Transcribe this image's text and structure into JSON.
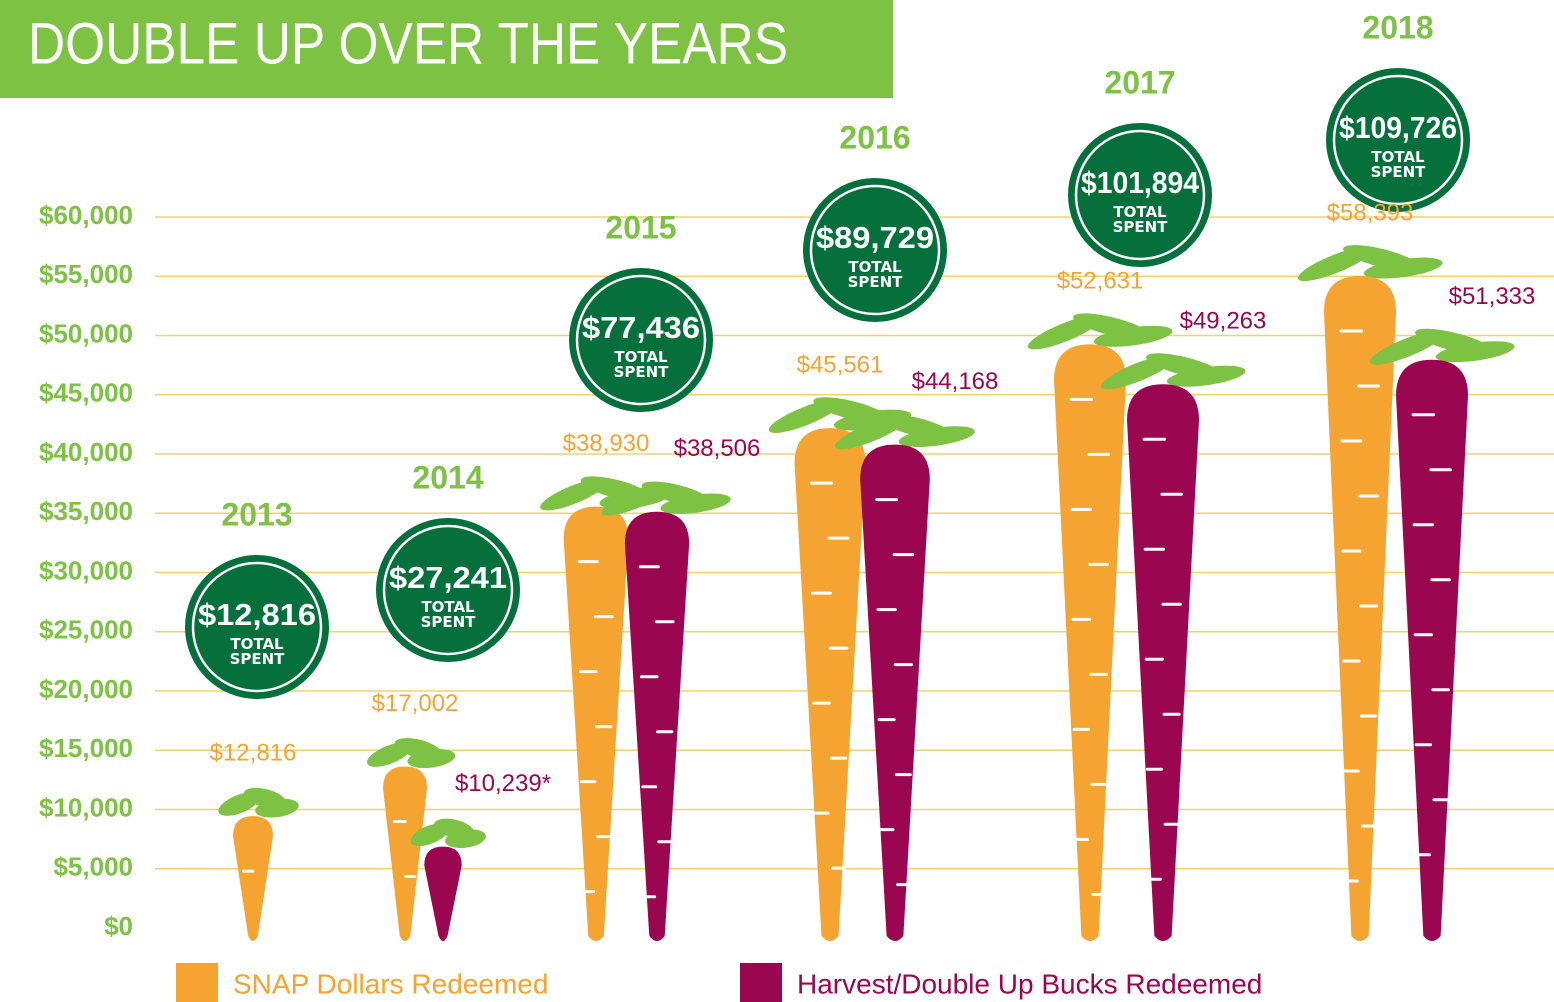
{
  "chart_data": {
    "type": "carrot-bar",
    "title": "DOUBLE UP OVER THE YEARS",
    "categories": [
      "2013",
      "2014",
      "2015",
      "2016",
      "2017",
      "2018"
    ],
    "series": [
      {
        "name": "SNAP Dollars Redeemed",
        "color": "#f5a431",
        "values": [
          12816,
          17002,
          38930,
          45561,
          52631,
          58393
        ],
        "value_labels": [
          "$12,816",
          "$17,002",
          "$38,930",
          "$45,561",
          "$52,631",
          "$58,393"
        ]
      },
      {
        "name": "Harvest/Double Up Bucks Redeemed",
        "color": "#9b0650",
        "values": [
          null,
          10239,
          38506,
          44168,
          49263,
          51333
        ],
        "value_labels": [
          null,
          "$10,239*",
          "$38,506",
          "$44,168",
          "$49,263",
          "$51,333"
        ]
      }
    ],
    "totals": {
      "caption": "TOTAL SPENT",
      "color": "#05703c",
      "values": [
        12816,
        27241,
        77436,
        89729,
        101894,
        109726
      ],
      "value_labels": [
        "$12,816",
        "$27,241",
        "$77,436",
        "$89,729",
        "$101,894",
        "$109,726"
      ]
    },
    "ylim": [
      0,
      60000
    ],
    "yticks": [
      {
        "value": 0,
        "label": "$0"
      },
      {
        "value": 5000,
        "label": "$5,000"
      },
      {
        "value": 10000,
        "label": "$10,000"
      },
      {
        "value": 15000,
        "label": "$15,000"
      },
      {
        "value": 20000,
        "label": "$20,000"
      },
      {
        "value": 25000,
        "label": "$25,000"
      },
      {
        "value": 30000,
        "label": "$30,000"
      },
      {
        "value": 35000,
        "label": "$35,000"
      },
      {
        "value": 40000,
        "label": "$40,000"
      },
      {
        "value": 45000,
        "label": "$45,000"
      },
      {
        "value": 50000,
        "label": "$50,000"
      },
      {
        "value": 55000,
        "label": "$55,000"
      },
      {
        "value": 60000,
        "label": "$60,000"
      }
    ],
    "grid": true
  }
}
